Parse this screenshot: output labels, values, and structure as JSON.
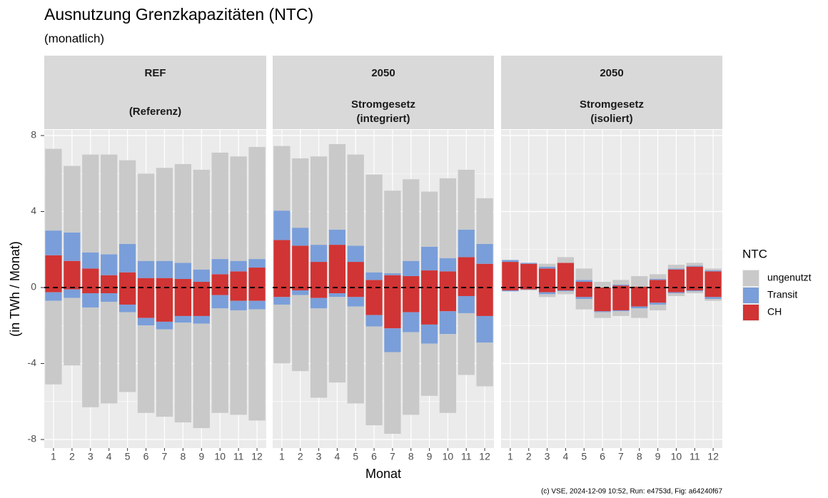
{
  "chart_data": {
    "type": "bar",
    "title": "Ausnutzung Grenzkapazitäten (NTC)",
    "subtitle": "(monatlich)",
    "x_label": "Monat",
    "y_label": "(in TWh / Monat)",
    "caption": "(c) VSE, 2024-12-09 10:52, Run: e4753d, Fig: a64240f67",
    "legend_title": "NTC",
    "series": [
      {
        "name": "ungenutzt",
        "color": "#c9c9c9"
      },
      {
        "name": "Transit",
        "color": "#7a9ed9"
      },
      {
        "name": "CH",
        "color": "#d13434"
      }
    ],
    "categories": [
      1,
      2,
      3,
      4,
      5,
      6,
      7,
      8,
      9,
      10,
      11,
      12
    ],
    "ylim": [
      -8.45,
      8.3
    ],
    "yticks": [
      -8,
      -4,
      0,
      4,
      8
    ],
    "grid": true,
    "hline": 0,
    "panels": [
      {
        "strip_top": "REF",
        "strip_bottom": [
          "(Referenz)"
        ],
        "series": [
          {
            "pos": [
              4.3,
              3.5,
              5.15,
              5.25,
              4.4,
              4.6,
              4.9,
              5.2,
              5.25,
              5.6,
              5.5,
              5.9
            ],
            "neg": [
              -4.4,
              -3.55,
              -5.25,
              -5.35,
              -4.2,
              -4.6,
              -4.6,
              -5.25,
              -5.5,
              -5.5,
              -5.5,
              -5.85
            ]
          },
          {
            "pos": [
              1.3,
              1.5,
              0.85,
              1.1,
              1.5,
              0.9,
              0.9,
              0.85,
              0.65,
              0.8,
              0.55,
              0.45
            ],
            "neg": [
              -0.45,
              -0.45,
              -0.75,
              -0.45,
              -0.4,
              -0.4,
              -0.4,
              -0.35,
              -0.4,
              -0.7,
              -0.5,
              -0.45
            ]
          },
          {
            "pos": [
              1.7,
              1.4,
              1.0,
              0.65,
              0.8,
              0.5,
              0.5,
              0.45,
              0.3,
              0.7,
              0.85,
              1.05
            ],
            "neg": [
              -0.25,
              -0.1,
              -0.3,
              -0.3,
              -0.9,
              -1.6,
              -1.8,
              -1.5,
              -1.5,
              -0.4,
              -0.7,
              -0.7
            ]
          }
        ]
      },
      {
        "strip_top": "2050",
        "strip_bottom": [
          "Stromgesetz",
          "(integriert)"
        ],
        "series": [
          {
            "pos": [
              3.4,
              3.65,
              4.65,
              4.5,
              4.8,
              5.15,
              4.35,
              4.3,
              2.9,
              4.2,
              3.15,
              2.4
            ],
            "neg": [
              -3.1,
              -4.0,
              -4.7,
              -4.5,
              -5.1,
              -5.2,
              -4.3,
              -4.35,
              -2.75,
              -4.15,
              -3.25,
              -2.3
            ]
          },
          {
            "pos": [
              1.55,
              0.95,
              0.9,
              0.8,
              0.85,
              0.4,
              0.1,
              0.8,
              1.25,
              0.7,
              1.45,
              1.05
            ],
            "neg": [
              -0.4,
              -0.25,
              -0.55,
              -0.2,
              -0.5,
              -0.6,
              -1.25,
              -1.05,
              -1.0,
              -1.2,
              -0.9,
              -1.4
            ]
          },
          {
            "pos": [
              2.5,
              2.2,
              1.35,
              2.25,
              1.35,
              0.4,
              0.65,
              0.6,
              0.9,
              0.85,
              1.6,
              1.25
            ],
            "neg": [
              -0.5,
              -0.15,
              -0.55,
              -0.3,
              -0.5,
              -1.45,
              -2.15,
              -1.3,
              -1.95,
              -1.25,
              -0.45,
              -1.5
            ]
          }
        ]
      },
      {
        "strip_top": "2050",
        "strip_bottom": [
          "Stromgesetz",
          "(isoliert)"
        ],
        "series": [
          {
            "pos": [
              0,
              0,
              0.15,
              0.3,
              0.6,
              0.3,
              0.25,
              0.55,
              0.25,
              0.2,
              0.15,
              0.1
            ],
            "neg": [
              0,
              -0.03,
              -0.15,
              -0.15,
              -0.55,
              -0.3,
              -0.25,
              -0.5,
              -0.3,
              -0.15,
              -0.1,
              -0.1
            ]
          },
          {
            "pos": [
              0.1,
              0.05,
              0.1,
              0,
              0.1,
              0,
              0.05,
              0,
              0.05,
              0.05,
              0.05,
              0.05
            ],
            "neg": [
              -0.05,
              -0.02,
              -0.1,
              -0.05,
              -0.1,
              -0.05,
              -0.05,
              -0.1,
              -0.1,
              -0.05,
              -0.05,
              -0.1
            ]
          },
          {
            "pos": [
              1.35,
              1.25,
              1.0,
              1.3,
              0.3,
              0,
              0.1,
              0.05,
              0.4,
              0.95,
              1.1,
              0.85
            ],
            "neg": [
              -0.15,
              -0.1,
              -0.25,
              -0.15,
              -0.5,
              -1.25,
              -1.2,
              -1.0,
              -0.8,
              -0.25,
              -0.15,
              -0.5
            ]
          }
        ]
      }
    ]
  }
}
